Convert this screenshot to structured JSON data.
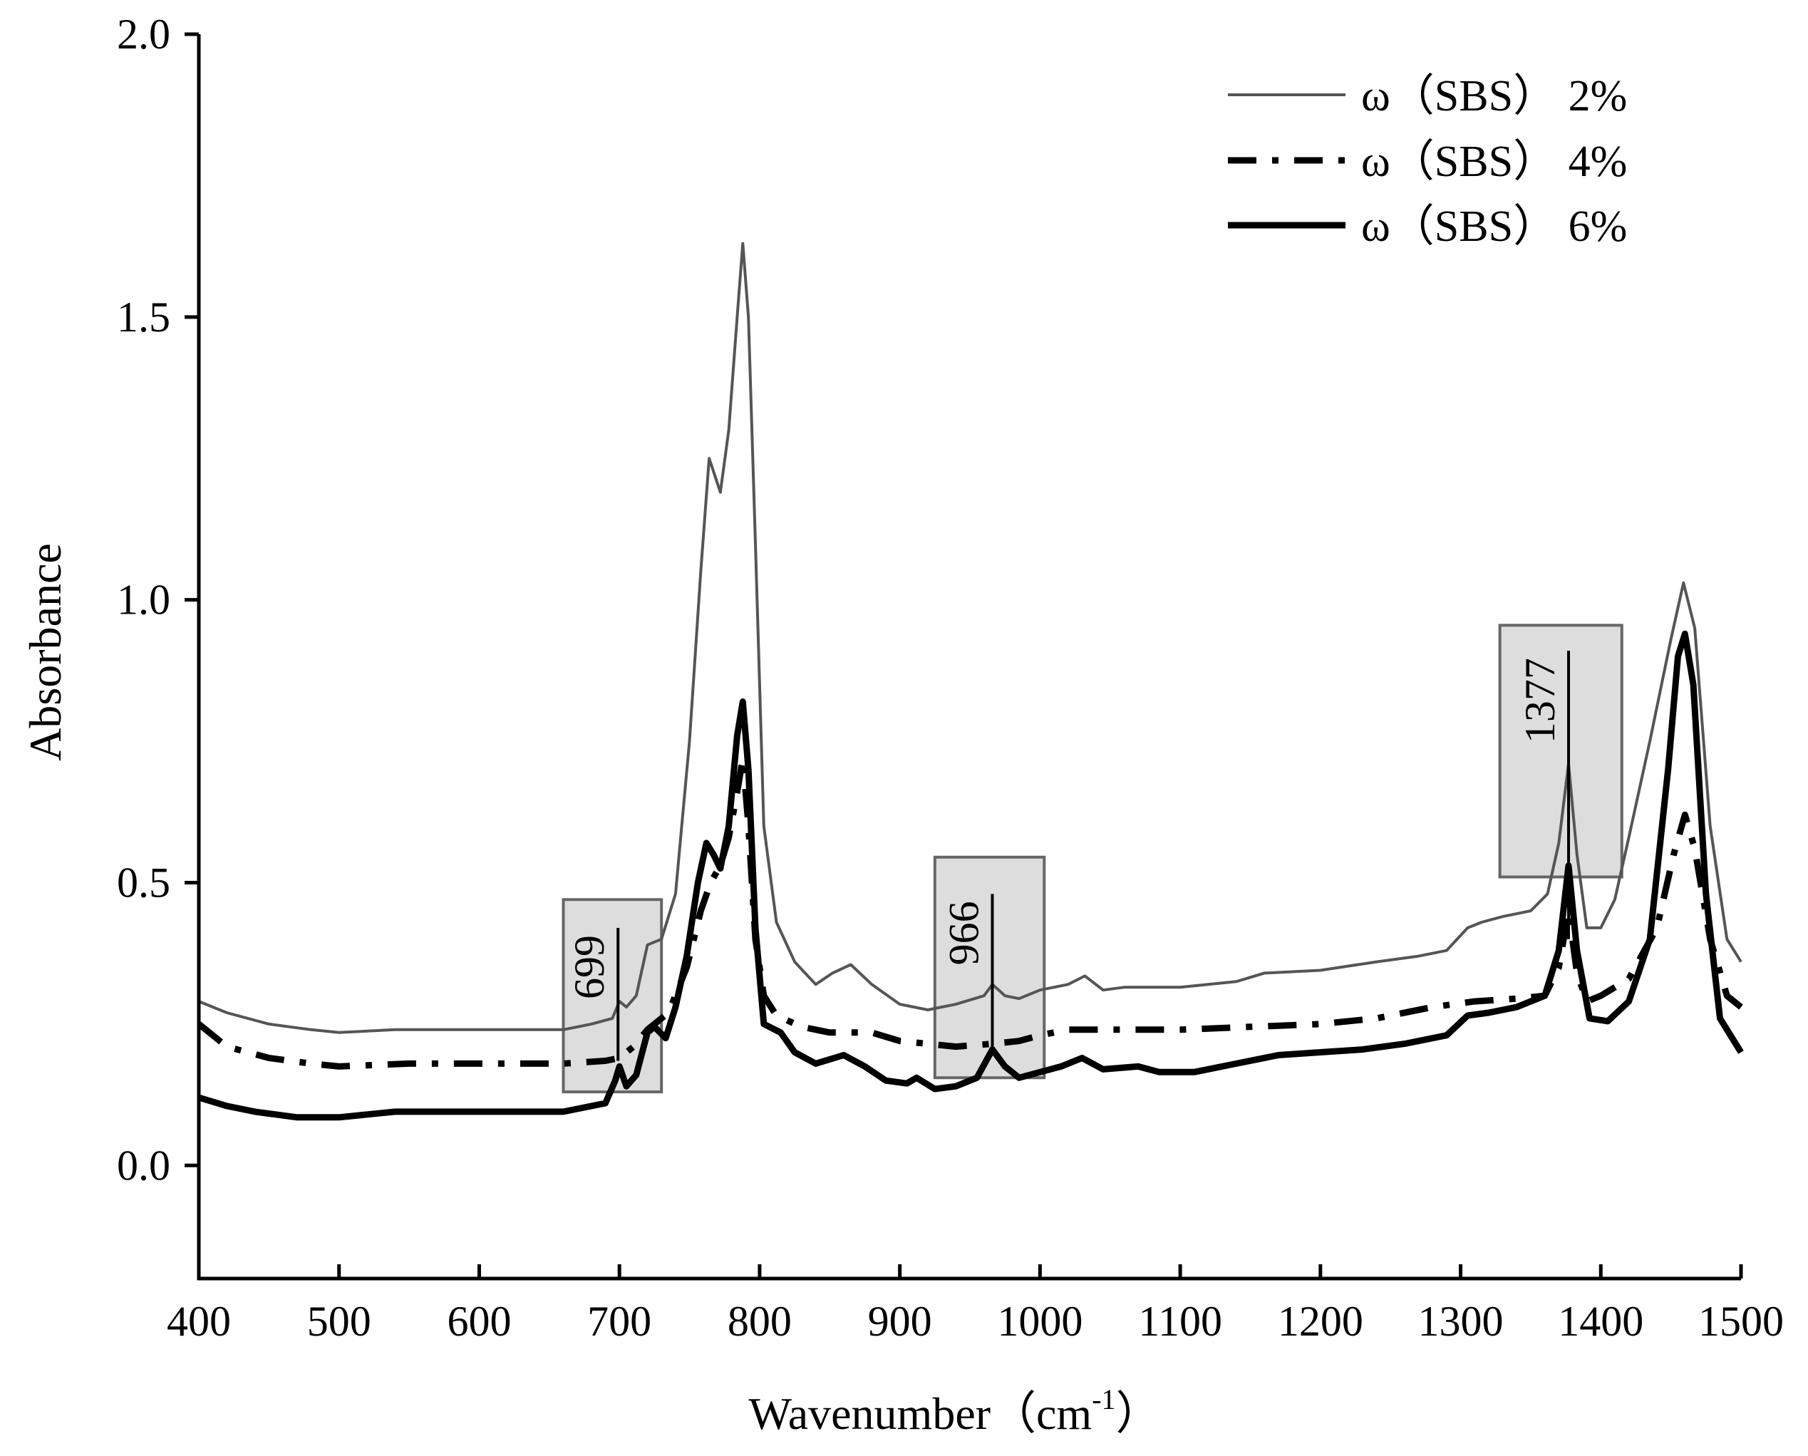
{
  "chart_data": {
    "type": "line",
    "title": "",
    "xlabel": "Wavenumber（cm",
    "xlabel_sup": "-1",
    "xlabel_close": "）",
    "ylabel": "Absorbance",
    "xlim": [
      400,
      1500
    ],
    "ylim": [
      -0.2,
      2.0
    ],
    "x_ticks": [
      400,
      500,
      600,
      700,
      800,
      900,
      1000,
      1100,
      1200,
      1300,
      1400,
      1500
    ],
    "y_ticks": [
      0.0,
      0.5,
      1.0,
      1.5,
      2.0
    ],
    "x_tick_labels": [
      "400",
      "500",
      "600",
      "700",
      "800",
      "900",
      "1000",
      "1100",
      "1200",
      "1300",
      "1400",
      "1500"
    ],
    "y_tick_labels": [
      "0.0",
      "0.5",
      "1.0",
      "1.5",
      "2.0"
    ],
    "grid": false,
    "legend_position": "top-right",
    "series": [
      {
        "name": "ω（SBS） 2%",
        "style": "thin-solid",
        "color": "#555555",
        "points": [
          [
            400,
            0.29
          ],
          [
            420,
            0.27
          ],
          [
            450,
            0.25
          ],
          [
            480,
            0.24
          ],
          [
            500,
            0.235
          ],
          [
            540,
            0.24
          ],
          [
            600,
            0.24
          ],
          [
            660,
            0.24
          ],
          [
            680,
            0.25
          ],
          [
            695,
            0.26
          ],
          [
            700,
            0.29
          ],
          [
            705,
            0.28
          ],
          [
            712,
            0.3
          ],
          [
            720,
            0.39
          ],
          [
            730,
            0.4
          ],
          [
            740,
            0.48
          ],
          [
            750,
            0.75
          ],
          [
            758,
            1.05
          ],
          [
            764,
            1.25
          ],
          [
            768,
            1.22
          ],
          [
            772,
            1.19
          ],
          [
            778,
            1.3
          ],
          [
            784,
            1.5
          ],
          [
            788,
            1.63
          ],
          [
            792,
            1.5
          ],
          [
            797,
            1.1
          ],
          [
            803,
            0.6
          ],
          [
            812,
            0.43
          ],
          [
            825,
            0.36
          ],
          [
            840,
            0.32
          ],
          [
            852,
            0.34
          ],
          [
            865,
            0.355
          ],
          [
            880,
            0.32
          ],
          [
            900,
            0.285
          ],
          [
            920,
            0.275
          ],
          [
            940,
            0.285
          ],
          [
            960,
            0.3
          ],
          [
            966,
            0.32
          ],
          [
            975,
            0.3
          ],
          [
            985,
            0.295
          ],
          [
            1000,
            0.31
          ],
          [
            1020,
            0.32
          ],
          [
            1032,
            0.335
          ],
          [
            1045,
            0.31
          ],
          [
            1060,
            0.315
          ],
          [
            1100,
            0.315
          ],
          [
            1140,
            0.325
          ],
          [
            1160,
            0.34
          ],
          [
            1200,
            0.345
          ],
          [
            1240,
            0.36
          ],
          [
            1270,
            0.37
          ],
          [
            1290,
            0.38
          ],
          [
            1305,
            0.42
          ],
          [
            1315,
            0.43
          ],
          [
            1330,
            0.44
          ],
          [
            1350,
            0.45
          ],
          [
            1362,
            0.48
          ],
          [
            1370,
            0.57
          ],
          [
            1377,
            0.71
          ],
          [
            1383,
            0.55
          ],
          [
            1390,
            0.42
          ],
          [
            1400,
            0.42
          ],
          [
            1410,
            0.47
          ],
          [
            1420,
            0.58
          ],
          [
            1435,
            0.75
          ],
          [
            1450,
            0.93
          ],
          [
            1459,
            1.03
          ],
          [
            1467,
            0.95
          ],
          [
            1478,
            0.6
          ],
          [
            1490,
            0.4
          ],
          [
            1500,
            0.36
          ]
        ]
      },
      {
        "name": "ω（SBS） 4%",
        "style": "dash-dot",
        "color": "#000000",
        "points": [
          [
            400,
            0.25
          ],
          [
            420,
            0.21
          ],
          [
            450,
            0.19
          ],
          [
            480,
            0.18
          ],
          [
            500,
            0.175
          ],
          [
            550,
            0.18
          ],
          [
            600,
            0.18
          ],
          [
            660,
            0.18
          ],
          [
            690,
            0.185
          ],
          [
            700,
            0.19
          ],
          [
            710,
            0.21
          ],
          [
            720,
            0.24
          ],
          [
            735,
            0.27
          ],
          [
            748,
            0.35
          ],
          [
            758,
            0.45
          ],
          [
            765,
            0.5
          ],
          [
            772,
            0.53
          ],
          [
            778,
            0.58
          ],
          [
            784,
            0.66
          ],
          [
            788,
            0.72
          ],
          [
            792,
            0.6
          ],
          [
            797,
            0.4
          ],
          [
            803,
            0.3
          ],
          [
            812,
            0.265
          ],
          [
            830,
            0.245
          ],
          [
            850,
            0.235
          ],
          [
            880,
            0.235
          ],
          [
            900,
            0.22
          ],
          [
            940,
            0.21
          ],
          [
            966,
            0.215
          ],
          [
            985,
            0.22
          ],
          [
            1000,
            0.23
          ],
          [
            1020,
            0.24
          ],
          [
            1040,
            0.24
          ],
          [
            1100,
            0.24
          ],
          [
            1150,
            0.245
          ],
          [
            1200,
            0.25
          ],
          [
            1240,
            0.26
          ],
          [
            1280,
            0.28
          ],
          [
            1310,
            0.29
          ],
          [
            1340,
            0.295
          ],
          [
            1360,
            0.3
          ],
          [
            1370,
            0.35
          ],
          [
            1377,
            0.45
          ],
          [
            1383,
            0.34
          ],
          [
            1390,
            0.29
          ],
          [
            1400,
            0.3
          ],
          [
            1420,
            0.33
          ],
          [
            1440,
            0.42
          ],
          [
            1452,
            0.55
          ],
          [
            1460,
            0.62
          ],
          [
            1467,
            0.56
          ],
          [
            1478,
            0.4
          ],
          [
            1490,
            0.3
          ],
          [
            1500,
            0.28
          ]
        ]
      },
      {
        "name": "ω（SBS） 6%",
        "style": "thick-solid",
        "color": "#000000",
        "points": [
          [
            400,
            0.12
          ],
          [
            420,
            0.105
          ],
          [
            440,
            0.095
          ],
          [
            470,
            0.085
          ],
          [
            500,
            0.085
          ],
          [
            520,
            0.09
          ],
          [
            540,
            0.095
          ],
          [
            580,
            0.095
          ],
          [
            620,
            0.095
          ],
          [
            660,
            0.095
          ],
          [
            690,
            0.11
          ],
          [
            697,
            0.15
          ],
          [
            700,
            0.175
          ],
          [
            705,
            0.14
          ],
          [
            712,
            0.16
          ],
          [
            720,
            0.235
          ],
          [
            725,
            0.245
          ],
          [
            733,
            0.225
          ],
          [
            740,
            0.28
          ],
          [
            748,
            0.37
          ],
          [
            756,
            0.5
          ],
          [
            762,
            0.57
          ],
          [
            767,
            0.55
          ],
          [
            772,
            0.525
          ],
          [
            778,
            0.6
          ],
          [
            784,
            0.76
          ],
          [
            788,
            0.82
          ],
          [
            792,
            0.7
          ],
          [
            797,
            0.42
          ],
          [
            803,
            0.25
          ],
          [
            815,
            0.235
          ],
          [
            825,
            0.2
          ],
          [
            840,
            0.18
          ],
          [
            860,
            0.195
          ],
          [
            875,
            0.175
          ],
          [
            890,
            0.15
          ],
          [
            905,
            0.145
          ],
          [
            912,
            0.155
          ],
          [
            925,
            0.135
          ],
          [
            940,
            0.14
          ],
          [
            955,
            0.155
          ],
          [
            966,
            0.205
          ],
          [
            975,
            0.175
          ],
          [
            985,
            0.155
          ],
          [
            1000,
            0.165
          ],
          [
            1015,
            0.175
          ],
          [
            1030,
            0.19
          ],
          [
            1045,
            0.17
          ],
          [
            1070,
            0.175
          ],
          [
            1085,
            0.165
          ],
          [
            1110,
            0.165
          ],
          [
            1140,
            0.18
          ],
          [
            1170,
            0.195
          ],
          [
            1200,
            0.2
          ],
          [
            1230,
            0.205
          ],
          [
            1260,
            0.215
          ],
          [
            1290,
            0.23
          ],
          [
            1305,
            0.265
          ],
          [
            1320,
            0.27
          ],
          [
            1340,
            0.28
          ],
          [
            1360,
            0.3
          ],
          [
            1370,
            0.38
          ],
          [
            1377,
            0.53
          ],
          [
            1383,
            0.38
          ],
          [
            1392,
            0.26
          ],
          [
            1405,
            0.255
          ],
          [
            1420,
            0.29
          ],
          [
            1435,
            0.4
          ],
          [
            1448,
            0.7
          ],
          [
            1455,
            0.9
          ],
          [
            1460,
            0.94
          ],
          [
            1466,
            0.85
          ],
          [
            1475,
            0.48
          ],
          [
            1485,
            0.26
          ],
          [
            1495,
            0.22
          ],
          [
            1500,
            0.2
          ]
        ]
      }
    ],
    "annotations": [
      {
        "label": "699",
        "x": 699,
        "x_range": [
          660,
          730
        ],
        "y_range": [
          0.13,
          0.47
        ],
        "line_top": 0.42,
        "line_bottom": 0.185
      },
      {
        "label": "966",
        "x": 966,
        "x_range": [
          925,
          1003
        ],
        "y_range": [
          0.155,
          0.545
        ],
        "line_top": 0.48,
        "line_bottom": 0.195
      },
      {
        "label": "1377",
        "x": 1377,
        "x_range": [
          1328,
          1415
        ],
        "y_range": [
          0.51,
          0.955
        ],
        "line_top": 0.91,
        "line_bottom": 0.4
      }
    ]
  }
}
